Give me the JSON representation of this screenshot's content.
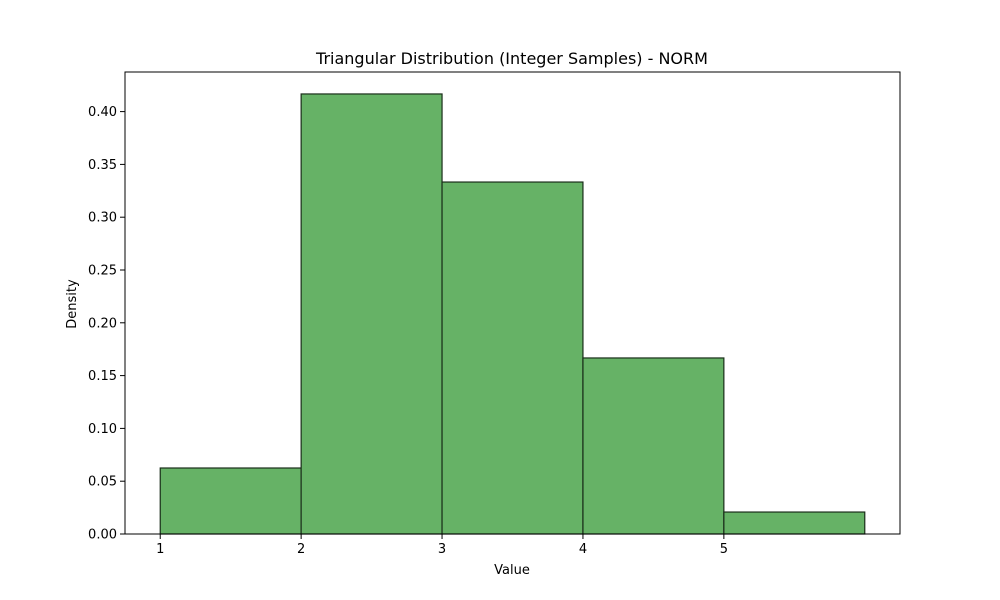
{
  "chart_data": {
    "type": "bar",
    "title": "Triangular Distribution (Integer Samples) - NORM",
    "xlabel": "Value",
    "ylabel": "Density",
    "bins": [
      {
        "start": 1,
        "end": 2,
        "value": 0.0625
      },
      {
        "start": 2,
        "end": 3,
        "value": 0.4167
      },
      {
        "start": 3,
        "end": 4,
        "value": 0.3333
      },
      {
        "start": 4,
        "end": 5,
        "value": 0.1667
      },
      {
        "start": 5,
        "end": 6,
        "value": 0.0208
      }
    ],
    "xlim": [
      0.75,
      6.25
    ],
    "ylim": [
      0,
      0.4375
    ],
    "xticks": [
      1,
      2,
      3,
      4,
      5
    ],
    "xtick_labels": [
      "1",
      "2",
      "3",
      "4",
      "5"
    ],
    "yticks": [
      0,
      0.05,
      0.1,
      0.15,
      0.2,
      0.25,
      0.3,
      0.35,
      0.4
    ],
    "ytick_labels": [
      "0.00",
      "0.05",
      "0.10",
      "0.15",
      "0.20",
      "0.25",
      "0.30",
      "0.35",
      "0.40"
    ],
    "grid": false,
    "colors": {
      "bar_fill": "#66b266",
      "bar_edge": "#1a2e1a",
      "axes": "#000000"
    }
  }
}
